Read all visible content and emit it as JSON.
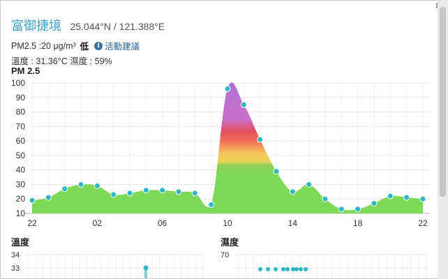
{
  "site": {
    "name": "富御捷境",
    "coords": "25.044°N / 121.388°E"
  },
  "pm_line": {
    "reading": "PM2.5 :20 μg/m³",
    "level": "低",
    "info_icon": "info-circle-icon",
    "advice": "活動建議"
  },
  "temp_humidity": "溫度 : 31.36°C 濕度 : 59%",
  "close_icon": "close-icon",
  "main_chart_title": "PM 2.5",
  "temp_chart_title": "溫度",
  "humidity_chart_title": "濕度",
  "colors": {
    "accent": "#3ca0c8",
    "area_green": "#7ed957",
    "point": "#2fb8c4",
    "link": "#2a6496"
  },
  "chart_data": {
    "type": "area",
    "title": "PM 2.5",
    "xlabel": "",
    "ylabel": "",
    "ylim": [
      10,
      100
    ],
    "yticks": [
      10,
      20,
      30,
      40,
      50,
      60,
      70,
      80,
      90,
      100
    ],
    "x_hours": [
      22,
      23,
      0,
      1,
      2,
      3,
      4,
      5,
      6,
      7,
      8,
      9,
      10,
      11,
      12,
      13,
      14,
      15,
      16,
      17,
      18,
      19,
      20,
      21,
      22
    ],
    "values": [
      19,
      21,
      27,
      30,
      29,
      23,
      24,
      26,
      26,
      25,
      24,
      16,
      96,
      85,
      61,
      39,
      25,
      30,
      20,
      13,
      13,
      17,
      22,
      21,
      20
    ],
    "xtick_labels": [
      {
        "index": 0,
        "label": "22"
      },
      {
        "index": 4,
        "label": "02"
      },
      {
        "index": 8,
        "label": "06"
      },
      {
        "index": 12,
        "label": "10"
      },
      {
        "index": 16,
        "label": "14"
      },
      {
        "index": 20,
        "label": "18"
      },
      {
        "index": 24,
        "label": "22"
      }
    ],
    "grid": true
  },
  "temp_chart": {
    "ytick_top": "34",
    "ytick_next": "33",
    "visible_point": 33.2
  },
  "humidity_chart": {
    "ytick_top": "70",
    "visible_points": [
      69,
      69,
      69,
      69,
      69,
      69,
      69,
      69,
      69
    ]
  }
}
